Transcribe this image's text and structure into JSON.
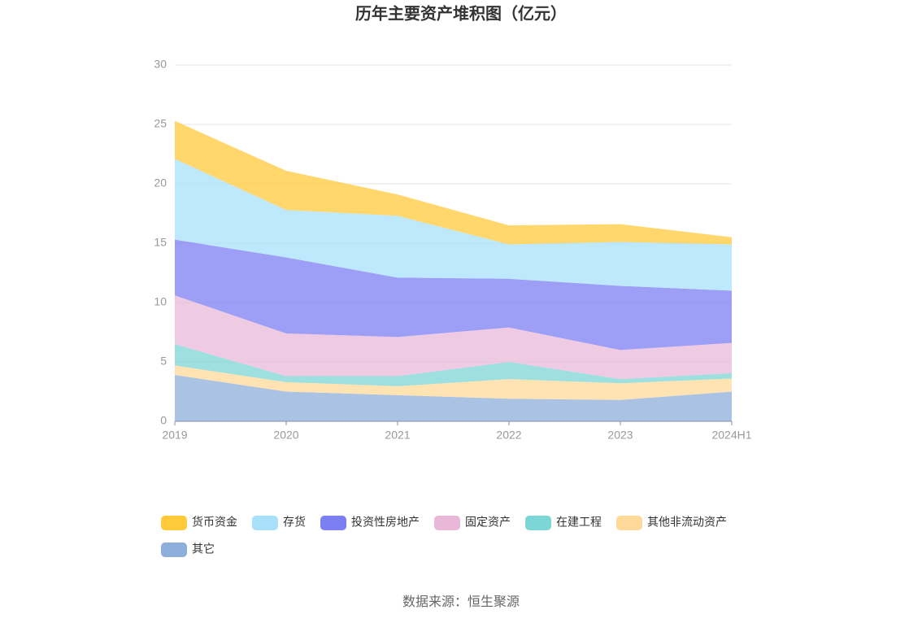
{
  "chart_data": {
    "type": "stacked-area",
    "title": "历年主要资产堆积图（亿元）",
    "categories": [
      "2019",
      "2020",
      "2021",
      "2022",
      "2023",
      "2024H1"
    ],
    "series": [
      {
        "name": "货币资金",
        "color": "#ffc93c",
        "values": [
          3.2,
          3.3,
          1.8,
          1.6,
          1.5,
          0.6
        ]
      },
      {
        "name": "存货",
        "color": "#a8e0fa",
        "values": [
          6.8,
          4.0,
          5.2,
          2.9,
          3.7,
          3.9
        ]
      },
      {
        "name": "投资性房地产",
        "color": "#7b7ff2",
        "values": [
          4.7,
          6.4,
          5.0,
          4.1,
          5.4,
          4.4
        ]
      },
      {
        "name": "固定资产",
        "color": "#e9b8d9",
        "values": [
          4.1,
          3.6,
          3.3,
          2.9,
          2.45,
          2.55
        ]
      },
      {
        "name": "在建工程",
        "color": "#7dd6d6",
        "values": [
          1.8,
          0.5,
          0.85,
          1.45,
          0.35,
          0.45
        ]
      },
      {
        "name": "其他非流动资产",
        "color": "#ffd99a",
        "values": [
          0.8,
          0.8,
          0.75,
          1.65,
          1.4,
          1.1
        ]
      },
      {
        "name": "其它",
        "color": "#8eaedb",
        "values": [
          3.9,
          2.5,
          2.2,
          1.9,
          1.8,
          2.5
        ]
      }
    ],
    "ylim": [
      0,
      30
    ],
    "yticks": [
      0,
      5,
      10,
      15,
      20,
      25,
      30
    ],
    "grid": true,
    "source": "数据来源：恒生聚源"
  }
}
